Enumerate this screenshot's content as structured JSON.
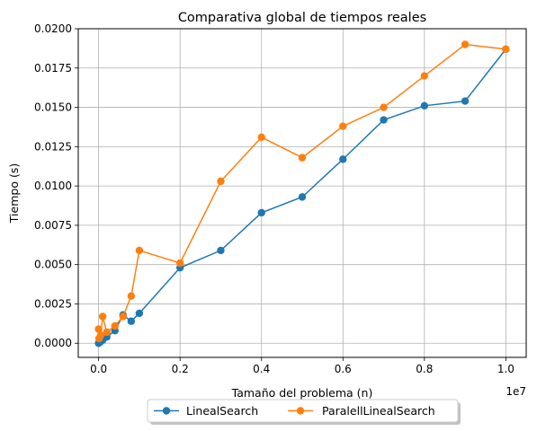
{
  "chart_data": {
    "type": "line",
    "title": "Comparativa global de tiempos reales",
    "xlabel": "Tamaño del problema (n)",
    "ylabel": "Tiempo (s)",
    "x_offset_label": "1e7",
    "xlim": [
      -0.05,
      1.05
    ],
    "ylim": [
      -0.0009,
      0.02
    ],
    "x_ticks": [
      0.0,
      0.2,
      0.4,
      0.6,
      0.8,
      1.0
    ],
    "x_tick_labels": [
      "0.0",
      "0.2",
      "0.4",
      "0.6",
      "0.8",
      "1.0"
    ],
    "y_ticks": [
      0.0,
      0.0025,
      0.005,
      0.0075,
      0.01,
      0.0125,
      0.015,
      0.0175,
      0.02
    ],
    "y_tick_labels": [
      "0.0000",
      "0.0025",
      "0.0050",
      "0.0075",
      "0.0100",
      "0.0125",
      "0.0150",
      "0.0175",
      "0.0200"
    ],
    "grid": true,
    "legend_position": "bottom-center",
    "series": [
      {
        "name": "LinealSearch",
        "color": "#1f77b4",
        "marker": "circle",
        "x": [
          0.0,
          0.001,
          0.005,
          0.01,
          0.02,
          0.04,
          0.06,
          0.08,
          0.1,
          0.2,
          0.3,
          0.4,
          0.5,
          0.6,
          0.7,
          0.8,
          0.9,
          1.0
        ],
        "values": [
          0.0,
          5e-05,
          0.0001,
          0.0002,
          0.0004,
          0.0008,
          0.0018,
          0.0014,
          0.0019,
          0.0048,
          0.0059,
          0.0083,
          0.0093,
          0.0117,
          0.0142,
          0.0151,
          0.0154,
          0.0187
        ]
      },
      {
        "name": "ParalellLinealSearch",
        "color": "#ff7f0e",
        "marker": "circle",
        "x": [
          0.0,
          0.001,
          0.005,
          0.01,
          0.02,
          0.04,
          0.06,
          0.08,
          0.1,
          0.2,
          0.3,
          0.4,
          0.5,
          0.6,
          0.7,
          0.8,
          0.9,
          1.0
        ],
        "values": [
          0.0009,
          0.0003,
          0.0005,
          0.0017,
          0.0007,
          0.0011,
          0.0017,
          0.003,
          0.0059,
          0.0051,
          0.0103,
          0.0131,
          0.0118,
          0.0138,
          0.015,
          0.017,
          0.019,
          0.0187
        ]
      }
    ]
  }
}
